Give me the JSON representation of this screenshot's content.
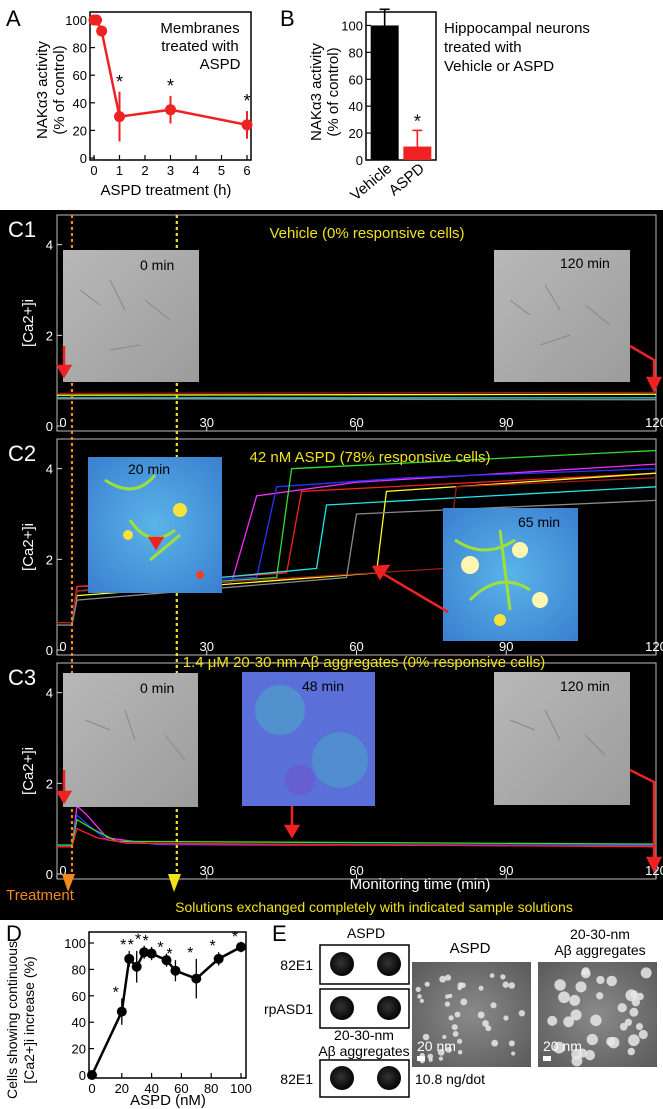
{
  "colors": {
    "red": "#ee2222",
    "black": "#000000",
    "orange": "#f08a1c",
    "yellow": "#f2e21a",
    "trace_colors": [
      "#ffffff",
      "#ff2bff",
      "#2a32ff",
      "#30e030",
      "#ff2020",
      "#21e6e6",
      "#ffff22",
      "#a01818",
      "#8a8a8a"
    ]
  },
  "panel_a": {
    "letter": "A",
    "ylabel_lines": [
      "NAKα3 activity",
      "(% of control)"
    ],
    "xlabel": "ASPD treatment (h)",
    "legend_lines": [
      "Membranes",
      "treated with",
      "ASPD"
    ],
    "star": "*",
    "chart_data": {
      "type": "line",
      "x": [
        0,
        0.1,
        0.3,
        1,
        3,
        6
      ],
      "values": [
        100,
        100,
        92,
        30,
        35,
        24
      ],
      "errors": [
        0,
        0,
        0,
        18,
        10,
        10
      ],
      "significant": [
        false,
        false,
        false,
        true,
        true,
        true
      ],
      "xlim": [
        0,
        6
      ],
      "ylim": [
        0,
        100
      ],
      "xticks": [
        "0",
        "1",
        "2",
        "3",
        "4",
        "5",
        "6"
      ],
      "yticks": [
        "0",
        "20",
        "40",
        "60",
        "80",
        "100"
      ]
    }
  },
  "panel_b": {
    "letter": "B",
    "ylabel_lines": [
      "NAKα3 activity",
      "(% of control)"
    ],
    "title_lines": [
      "Hippocampal neurons",
      "treated with",
      "Vehicle or ASPD"
    ],
    "star": "*",
    "chart_data": {
      "type": "bar",
      "categories": [
        "Vehicle",
        "ASPD"
      ],
      "values": [
        100,
        10
      ],
      "errors": [
        12,
        12
      ],
      "ylim": [
        0,
        110
      ],
      "yticks": [
        "0",
        "20",
        "40",
        "60",
        "80",
        "100"
      ]
    }
  },
  "panel_c": {
    "ylabel": "[Ca2+]i",
    "xticks": [
      "0",
      "30",
      "60",
      "90",
      "120"
    ],
    "xlabel": "Monitoring time (min)",
    "treatment_label": "Treatment",
    "exchange_label": "Solutions exchanged completely with indicated sample solutions",
    "treatment_time": 3,
    "exchange_time": 24,
    "xlim": [
      0,
      120
    ],
    "c1": {
      "letter": "C1",
      "title": "Vehicle (0% responsive cells)",
      "yticks": [
        "0",
        "2",
        "4"
      ],
      "ylim": [
        0,
        4.5
      ],
      "image_labels": [
        "0 min",
        "120 min"
      ],
      "chart_data": {
        "type": "line",
        "series": [
          {
            "values": [
              [
                0,
                0.62
              ],
              [
                120,
                0.62
              ]
            ]
          },
          {
            "values": [
              [
                0,
                0.68
              ],
              [
                120,
                0.7
              ]
            ]
          },
          {
            "values": [
              [
                0,
                0.72
              ],
              [
                120,
                0.74
              ]
            ]
          },
          {
            "values": [
              [
                0,
                0.6
              ],
              [
                120,
                0.58
              ]
            ]
          }
        ]
      }
    },
    "c2": {
      "letter": "C2",
      "title": "42 nM ASPD (78% responsive cells)",
      "yticks": [
        "0",
        "2",
        "4"
      ],
      "ylim": [
        0,
        4.5
      ],
      "image_labels": [
        "20 min",
        "65 min"
      ],
      "chart_data": {
        "type": "line",
        "series": [
          {
            "values": [
              [
                0,
                0.6
              ],
              [
                3,
                0.6
              ],
              [
                4,
                1.4
              ],
              [
                35,
                1.5
              ],
              [
                40,
                3.4
              ],
              [
                60,
                3.7
              ],
              [
                120,
                4.1
              ]
            ]
          },
          {
            "values": [
              [
                0,
                0.6
              ],
              [
                3,
                0.6
              ],
              [
                4,
                1.4
              ],
              [
                40,
                1.6
              ],
              [
                44,
                3.6
              ],
              [
                70,
                3.8
              ],
              [
                120,
                4.0
              ]
            ]
          },
          {
            "values": [
              [
                0,
                0.6
              ],
              [
                3,
                0.6
              ],
              [
                4,
                1.3
              ],
              [
                44,
                1.6
              ],
              [
                47,
                4.0
              ],
              [
                120,
                4.4
              ]
            ]
          },
          {
            "values": [
              [
                0,
                0.6
              ],
              [
                3,
                0.6
              ],
              [
                4,
                1.4
              ],
              [
                46,
                1.7
              ],
              [
                49,
                3.5
              ],
              [
                120,
                3.9
              ]
            ]
          },
          {
            "values": [
              [
                0,
                0.6
              ],
              [
                3,
                0.6
              ],
              [
                4,
                1.3
              ],
              [
                52,
                1.8
              ],
              [
                54,
                3.2
              ],
              [
                120,
                3.6
              ]
            ]
          },
          {
            "values": [
              [
                0,
                0.6
              ],
              [
                3,
                0.6
              ],
              [
                4,
                1.2
              ],
              [
                64,
                1.7
              ],
              [
                66,
                3.5
              ],
              [
                120,
                3.9
              ]
            ]
          },
          {
            "values": [
              [
                0,
                0.6
              ],
              [
                3,
                0.6
              ],
              [
                4,
                1.3
              ],
              [
                78,
                1.8
              ],
              [
                80,
                3.6
              ],
              [
                120,
                3.8
              ]
            ]
          },
          {
            "values": [
              [
                0,
                0.55
              ],
              [
                3,
                0.55
              ],
              [
                4,
                1.1
              ],
              [
                58,
                1.6
              ],
              [
                60,
                3.0
              ],
              [
                120,
                3.3
              ]
            ]
          }
        ]
      }
    },
    "c3": {
      "letter": "C3",
      "title": "1.4 μM 20-30-nm Aβ aggregates (0% responsive cells)",
      "yticks": [
        "0",
        "2",
        "4"
      ],
      "ylim": [
        0,
        4.5
      ],
      "image_labels": [
        "0 min",
        "48 min",
        "120 min"
      ],
      "chart_data": {
        "type": "line",
        "series": [
          {
            "values": [
              [
                0,
                0.6
              ],
              [
                3,
                0.6
              ],
              [
                4,
                1.5
              ],
              [
                6,
                1.3
              ],
              [
                10,
                0.8
              ],
              [
                20,
                0.65
              ],
              [
                120,
                0.62
              ]
            ]
          },
          {
            "values": [
              [
                0,
                0.62
              ],
              [
                3,
                0.62
              ],
              [
                4,
                1.3
              ],
              [
                6,
                1.1
              ],
              [
                10,
                0.75
              ],
              [
                20,
                0.66
              ],
              [
                120,
                0.64
              ]
            ]
          },
          {
            "values": [
              [
                0,
                0.64
              ],
              [
                3,
                0.64
              ],
              [
                4,
                1.2
              ],
              [
                7,
                1.0
              ],
              [
                12,
                0.72
              ],
              [
                120,
                0.66
              ]
            ]
          },
          {
            "values": [
              [
                0,
                0.6
              ],
              [
                3,
                0.6
              ],
              [
                4,
                1.0
              ],
              [
                8,
                0.8
              ],
              [
                14,
                0.68
              ],
              [
                120,
                0.6
              ]
            ]
          }
        ]
      }
    }
  },
  "panel_d": {
    "letter": "D",
    "ylabel_lines": [
      "Cells showing continuous",
      "[Ca2+]i increase (%)"
    ],
    "xlabel": "ASPD (nM)",
    "star": "*",
    "chart_data": {
      "type": "line",
      "x": [
        0,
        20,
        25,
        30,
        35,
        40,
        50,
        56,
        70,
        85,
        100
      ],
      "values": [
        0,
        48,
        88,
        82,
        93,
        92,
        87,
        79,
        73,
        88,
        97
      ],
      "errors": [
        0,
        10,
        6,
        12,
        5,
        5,
        5,
        8,
        15,
        5,
        4
      ],
      "significant": [
        false,
        true,
        true,
        true,
        true,
        true,
        true,
        true,
        true,
        true,
        true
      ],
      "xlim": [
        0,
        100
      ],
      "ylim": [
        0,
        100
      ],
      "xticks": [
        "0",
        "20",
        "40",
        "60",
        "80",
        "100"
      ],
      "yticks": [
        "0",
        "20",
        "40",
        "60",
        "80",
        "100"
      ]
    }
  },
  "panel_e": {
    "letter": "E",
    "dot_title_1": "ASPD",
    "dot_title_2_lines": [
      "20-30-nm",
      "Aβ aggregates"
    ],
    "antibodies": [
      "82E1",
      "rpASD1"
    ],
    "dot_note": "10.8 ng/dot",
    "em_titles": [
      "ASPD",
      "20-30-nm",
      "Aβ aggregates"
    ],
    "scale_label": "20 nm"
  }
}
